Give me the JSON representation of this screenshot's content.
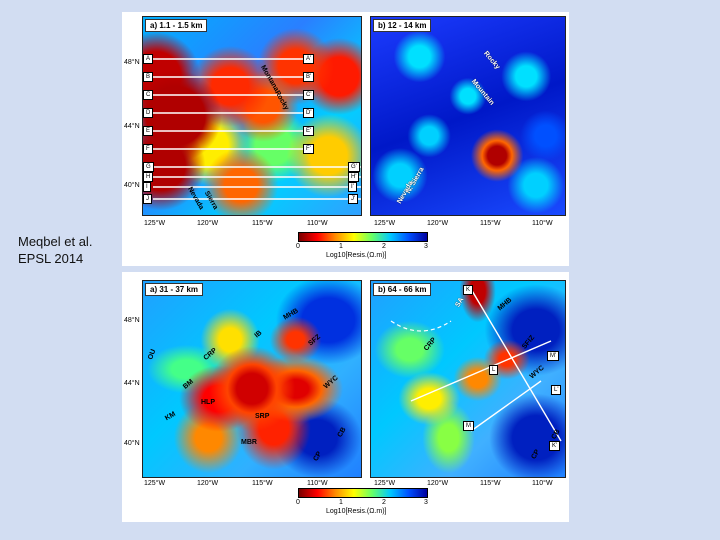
{
  "citation": [
    "Meqbel et al.",
    "EPSL 2014"
  ],
  "top_figure": {
    "panels": [
      {
        "title": "a)  1.1 - 1.5 km",
        "lat_labels": [
          "48°N",
          "44°N",
          "40°N"
        ],
        "lon_labels": [
          "125°W",
          "120°W",
          "115°W",
          "110°W"
        ],
        "profile_labels_left": [
          "A",
          "B",
          "C",
          "D",
          "E",
          "F",
          "G",
          "H",
          "I",
          "J"
        ],
        "profile_labels_right": [
          "A'",
          "B'",
          "C'",
          "D'",
          "E'",
          "F'",
          "G'",
          "H'",
          "I'",
          "J'"
        ],
        "annotations": [
          "Montana",
          "Rocky",
          "Nevada",
          "Sierra"
        ]
      },
      {
        "title": "b)  12 - 14 km",
        "lon_labels": [
          "125°W",
          "120°W",
          "115°W",
          "110°W"
        ],
        "annotations": [
          "Rocky",
          "Mountain",
          "N. Sierra",
          "Nevada"
        ]
      }
    ],
    "colorbar": {
      "ticks": [
        "0",
        "1",
        "2",
        "3"
      ],
      "label": "Log10[Resis.(Ω.m)]"
    }
  },
  "bottom_figure": {
    "panels": [
      {
        "title": "a)  31 - 37 km",
        "lat_labels": [
          "48°N",
          "44°N",
          "40°N"
        ],
        "lon_labels": [
          "125°W",
          "120°W",
          "115°W",
          "110°W"
        ],
        "provinces": [
          "MHB",
          "CRP",
          "IB",
          "SFZ",
          "OU",
          "BM",
          "WYC",
          "HLP",
          "KM",
          "SRP",
          "MBR",
          "CP",
          "CB"
        ]
      },
      {
        "title": "b)  64 - 66 km",
        "lon_labels": [
          "125°W",
          "120°W",
          "115°W",
          "110°W"
        ],
        "provinces": [
          "SA",
          "MHB",
          "CRP",
          "SFIZ",
          "WYC",
          "CP",
          "CB"
        ],
        "profile_labels": [
          "K",
          "M'",
          "L",
          "L'",
          "M",
          "K'"
        ]
      }
    ],
    "colorbar": {
      "ticks": [
        "0",
        "1",
        "2",
        "3"
      ],
      "label": "Log10[Resis.(Ω.m)]"
    }
  }
}
